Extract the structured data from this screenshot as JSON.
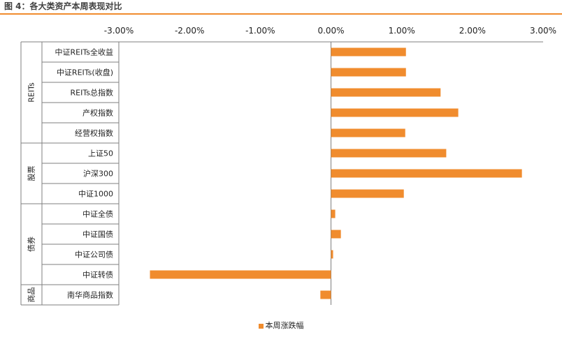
{
  "figure": {
    "title": "图 4：各大类资产本周表现对比"
  },
  "colors": {
    "bar": "#f08c2e",
    "rule": "#f08c2e",
    "axis": "#7f7f7f"
  },
  "chart_data": {
    "type": "bar",
    "orientation": "horizontal",
    "title": "",
    "xlabel": "",
    "ylabel": "",
    "xlim": [
      -0.03,
      0.03
    ],
    "x_ticks": [
      "-3.00%",
      "-2.00%",
      "-1.00%",
      "0.00%",
      "1.00%",
      "2.00%",
      "3.00%"
    ],
    "x_axis_position": "top",
    "grid": false,
    "legend": "bottom",
    "groups": [
      {
        "name": "REITs",
        "count": 5
      },
      {
        "name": "股票",
        "count": 3
      },
      {
        "name": "债券",
        "count": 4
      },
      {
        "name": "商品",
        "count": 1
      }
    ],
    "categories": [
      "中证REITs全收益",
      "中证REITs(收盘)",
      "REITs总指数",
      "产权指数",
      "经营权指数",
      "上证50",
      "沪深300",
      "中证1000",
      "中证全债",
      "中证国债",
      "中证公司债",
      "中证转债",
      "南华商品指数"
    ],
    "series": [
      {
        "name": "本周涨跌幅",
        "values": [
          0.0106,
          0.0106,
          0.0155,
          0.018,
          0.0105,
          0.0163,
          0.027,
          0.0103,
          0.0006,
          0.0014,
          0.0003,
          -0.0256,
          -0.0015
        ]
      }
    ]
  }
}
